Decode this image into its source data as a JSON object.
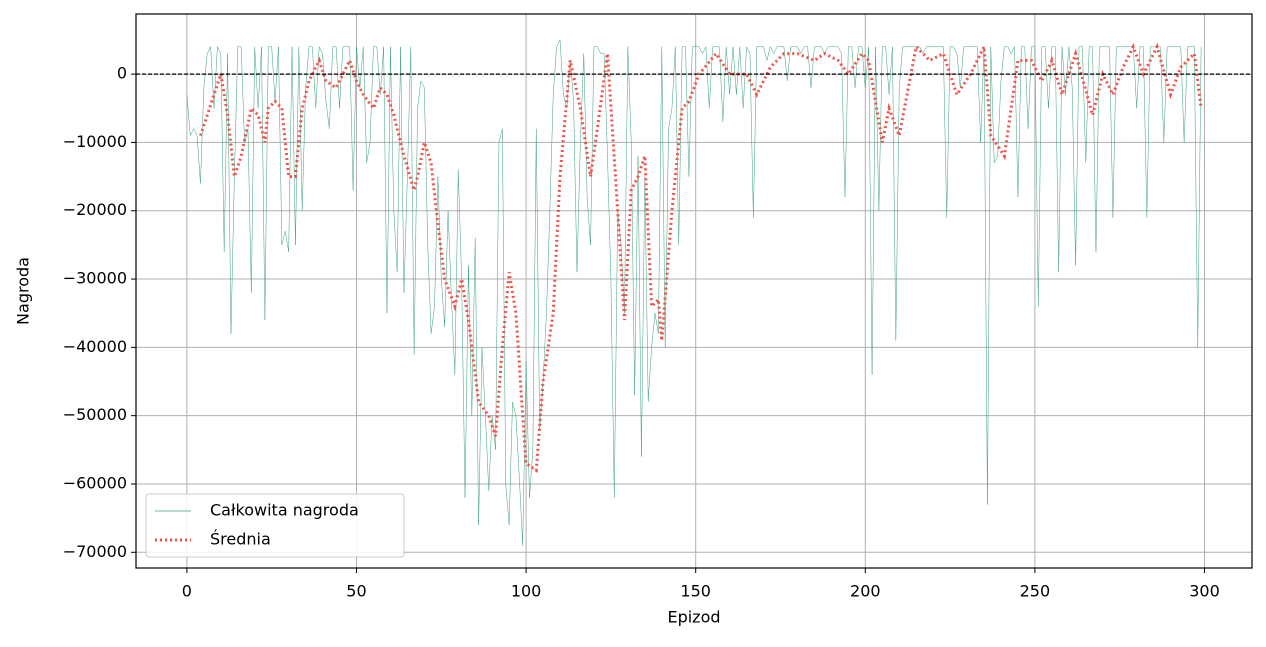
{
  "chart_data": {
    "type": "line",
    "xlabel": "Epizod",
    "ylabel": "Nagroda",
    "xlim": [
      -15,
      314
    ],
    "ylim": [
      -72300,
      8800
    ],
    "xticks": [
      0,
      50,
      100,
      150,
      200,
      250,
      300
    ],
    "yticks": [
      {
        "value": -70000,
        "label": "−70000"
      },
      {
        "value": -60000,
        "label": "−60000"
      },
      {
        "value": -50000,
        "label": "−50000"
      },
      {
        "value": -40000,
        "label": "−40000"
      },
      {
        "value": -30000,
        "label": "−30000"
      },
      {
        "value": -20000,
        "label": "−20000"
      },
      {
        "value": -10000,
        "label": "−10000"
      },
      0
    ],
    "grid": true,
    "reference_line": 0,
    "legend": "lower left",
    "series": [
      {
        "name": "Całkowita nagroda",
        "color": "#3aa078",
        "style": "solid",
        "x": [
          0,
          1,
          2,
          3,
          4,
          5,
          6,
          7,
          8,
          9,
          10,
          11,
          12,
          13,
          14,
          15,
          16,
          17,
          18,
          19,
          20,
          21,
          22,
          23,
          24,
          25,
          26,
          27,
          28,
          29,
          30,
          31,
          32,
          33,
          34,
          35,
          36,
          37,
          38,
          39,
          40,
          41,
          42,
          43,
          44,
          45,
          46,
          47,
          48,
          49,
          50,
          51,
          52,
          53,
          54,
          55,
          56,
          57,
          58,
          59,
          60,
          61,
          62,
          63,
          64,
          65,
          66,
          67,
          68,
          69,
          70,
          71,
          72,
          73,
          74,
          75,
          76,
          77,
          78,
          79,
          80,
          81,
          82,
          83,
          84,
          85,
          86,
          87,
          88,
          89,
          90,
          91,
          92,
          93,
          94,
          95,
          96,
          97,
          98,
          99,
          100,
          101,
          102,
          103,
          104,
          105,
          106,
          107,
          108,
          109,
          110,
          111,
          112,
          113,
          114,
          115,
          116,
          117,
          118,
          119,
          120,
          121,
          122,
          123,
          124,
          125,
          126,
          127,
          128,
          129,
          130,
          131,
          132,
          133,
          134,
          135,
          136,
          137,
          138,
          139,
          140,
          141,
          142,
          143,
          144,
          145,
          146,
          147,
          148,
          149,
          150,
          151,
          152,
          153,
          154,
          155,
          156,
          157,
          158,
          159,
          160,
          161,
          162,
          163,
          164,
          165,
          166,
          167,
          168,
          169,
          170,
          171,
          172,
          173,
          174,
          175,
          176,
          177,
          178,
          179,
          180,
          181,
          182,
          183,
          184,
          185,
          186,
          187,
          188,
          189,
          190,
          191,
          192,
          193,
          194,
          195,
          196,
          197,
          198,
          199,
          200,
          201,
          202,
          203,
          204,
          205,
          206,
          207,
          208,
          209,
          210,
          211,
          212,
          213,
          214,
          215,
          216,
          217,
          218,
          219,
          220,
          221,
          222,
          223,
          224,
          225,
          226,
          227,
          228,
          229,
          230,
          231,
          232,
          233,
          234,
          235,
          236,
          237,
          238,
          239,
          240,
          241,
          242,
          243,
          244,
          245,
          246,
          247,
          248,
          249,
          250,
          251,
          252,
          253,
          254,
          255,
          256,
          257,
          258,
          259,
          260,
          261,
          262,
          263,
          264,
          265,
          266,
          267,
          268,
          269,
          270,
          271,
          272,
          273,
          274,
          275,
          276,
          277,
          278,
          279,
          280,
          281,
          282,
          283,
          284,
          285,
          286,
          287,
          288,
          289,
          290,
          291,
          292,
          293,
          294,
          295,
          296,
          297,
          298,
          299
        ],
        "values": [
          -3000,
          -9000,
          -8000,
          -9000,
          -16000,
          -2000,
          3000,
          4000,
          -5000,
          4000,
          3000,
          -26000,
          3000,
          -38000,
          -15000,
          4000,
          4000,
          -10000,
          -8000,
          -32000,
          4000,
          -5000,
          4000,
          -36000,
          4000,
          4000,
          -4000,
          4000,
          -25000,
          -23000,
          -26000,
          4000,
          -25000,
          4000,
          -20000,
          -2000,
          4000,
          4000,
          -5000,
          4000,
          3000,
          -4000,
          -8000,
          4000,
          4000,
          -5000,
          4000,
          4000,
          4000,
          -17000,
          4000,
          -2000,
          4000,
          -13000,
          -10000,
          4000,
          4000,
          -3000,
          4000,
          -35000,
          4000,
          -20000,
          -29000,
          4000,
          -32000,
          -15000,
          4000,
          -41000,
          -5000,
          -1000,
          -2000,
          -25000,
          -38000,
          -34000,
          -15000,
          -30000,
          -37000,
          -20000,
          -33000,
          -44000,
          -14000,
          -30000,
          -62000,
          -28000,
          -50000,
          -24000,
          -66000,
          -40000,
          -50000,
          -61000,
          -50000,
          -55000,
          -10000,
          -8000,
          -60000,
          -66000,
          -48000,
          -50000,
          -59000,
          -69000,
          -42000,
          -62000,
          -55000,
          -8000,
          -52000,
          -45000,
          -35000,
          -20000,
          -3000,
          4000,
          5000,
          -3000,
          -5000,
          2000,
          -4000,
          -29000,
          -10000,
          3000,
          -18000,
          -25000,
          4000,
          4000,
          3000,
          3000,
          -12000,
          -30000,
          -62000,
          -20000,
          -25000,
          -35000,
          4000,
          -10000,
          -47000,
          -12000,
          -56000,
          -15000,
          -48000,
          -40000,
          -35000,
          -38000,
          4000,
          -40000,
          -8000,
          -5000,
          4000,
          -25000,
          4000,
          4000,
          -15000,
          4000,
          4000,
          4000,
          3000,
          4000,
          -5000,
          4000,
          4000,
          4000,
          -7000,
          4000,
          -3000,
          4000,
          -3000,
          4000,
          -5000,
          4000,
          3000,
          -21000,
          4000,
          4000,
          4000,
          2000,
          4000,
          3000,
          4000,
          4000,
          4000,
          -1000,
          4000,
          4000,
          4000,
          3000,
          4000,
          4000,
          -2000,
          4000,
          4000,
          4000,
          3000,
          4000,
          4000,
          4000,
          4000,
          3000,
          -18000,
          4000,
          4000,
          -2000,
          4000,
          4000,
          -2000,
          4000,
          -44000,
          4000,
          -20000,
          4000,
          4000,
          -3000,
          4000,
          -39000,
          -2000,
          4000,
          4000,
          4000,
          4000,
          4000,
          4000,
          3000,
          4000,
          4000,
          4000,
          4000,
          4000,
          4000,
          -21000,
          4000,
          4000,
          3000,
          -2000,
          4000,
          4000,
          4000,
          4000,
          4000,
          -10000,
          4000,
          -63000,
          4000,
          -13000,
          -12000,
          -1000,
          4000,
          4000,
          3000,
          4000,
          -18000,
          4000,
          4000,
          -8000,
          4000,
          4000,
          -34000,
          4000,
          4000,
          -5000,
          4000,
          4000,
          -29000,
          4000,
          -3000,
          4000,
          -2000,
          -28000,
          4000,
          4000,
          -13000,
          4000,
          4000,
          -26000,
          4000,
          4000,
          4000,
          4000,
          -21000,
          4000,
          4000,
          4000,
          4000,
          4000,
          4000,
          -5000,
          4000,
          4000,
          -21000,
          4000,
          4000,
          4000,
          4000,
          -10000,
          4000,
          4000,
          4000,
          4000,
          4000,
          -10000,
          4000,
          4000,
          4000,
          -40000,
          4000
        ]
      },
      {
        "name": "Średnia",
        "color": "#f0524a",
        "style": "dotted",
        "x": [
          4,
          6,
          8,
          10,
          12,
          14,
          16,
          19,
          21,
          23,
          24,
          26,
          28,
          30,
          32,
          34,
          36,
          39,
          41,
          44,
          48,
          50,
          52,
          55,
          57,
          59,
          61,
          64,
          67,
          68,
          70,
          72,
          74,
          76,
          79,
          81,
          83,
          86,
          89,
          91,
          93,
          95,
          97,
          99,
          100,
          103,
          105,
          108,
          110,
          113,
          116,
          119,
          121,
          124,
          127,
          129,
          131,
          133,
          135,
          137,
          139,
          140,
          143,
          146,
          148,
          151,
          156,
          160,
          165,
          168,
          172,
          176,
          180,
          185,
          188,
          192,
          195,
          199,
          201,
          205,
          207,
          210,
          215,
          219,
          223,
          227,
          231,
          235,
          237,
          241,
          245,
          249,
          252,
          255,
          258,
          262,
          267,
          270,
          273,
          276,
          279,
          282,
          286,
          290,
          293,
          297,
          299
        ],
        "values": [
          -9000,
          -6000,
          -3000,
          0,
          -6000,
          -15000,
          -12000,
          -5000,
          -6000,
          -10000,
          -5000,
          -4000,
          -5000,
          -15000,
          -15000,
          -5000,
          -1000,
          2000,
          -1000,
          -2000,
          2000,
          -1000,
          -3000,
          -5000,
          -2000,
          -3000,
          -6000,
          -12000,
          -17000,
          -15000,
          -10000,
          -13000,
          -22000,
          -30000,
          -34000,
          -30000,
          -36000,
          -48000,
          -50000,
          -53000,
          -40000,
          -29000,
          -35000,
          -50000,
          -57000,
          -58000,
          -45000,
          -35000,
          -15000,
          2000,
          -5000,
          -15000,
          -8000,
          3000,
          -20000,
          -36000,
          -17000,
          -15000,
          -12000,
          -34000,
          -33000,
          -39000,
          -20000,
          -5000,
          -4000,
          0,
          3000,
          0,
          0,
          -3000,
          1000,
          3000,
          3000,
          2000,
          3000,
          2000,
          0,
          3000,
          2000,
          -10000,
          -5000,
          -9000,
          4000,
          2000,
          3000,
          -3000,
          0,
          4000,
          -9000,
          -12000,
          2000,
          2000,
          -1000,
          2000,
          -3000,
          3000,
          -6000,
          0,
          -3000,
          1000,
          4000,
          0,
          4000,
          -3000,
          1000,
          3000,
          -5000
        ]
      }
    ]
  }
}
